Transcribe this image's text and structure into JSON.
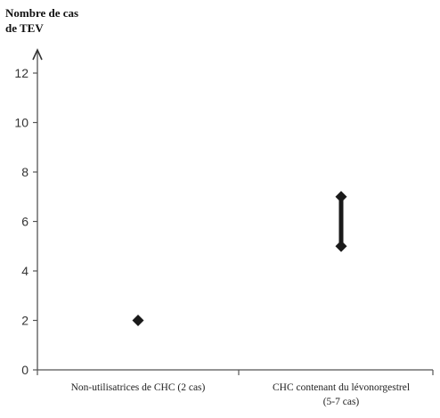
{
  "chart_data": {
    "type": "scatter",
    "ylabel_lines": [
      "Nombre de cas",
      "de TEV"
    ],
    "xlabel": "",
    "title": "",
    "ylim": [
      0,
      12
    ],
    "yticks": [
      0,
      2,
      4,
      6,
      8,
      10,
      12
    ],
    "grid": false,
    "legend": false,
    "categories": [
      {
        "label_lines": [
          "Non-utilisatrices de CHC (2 cas)"
        ]
      },
      {
        "label_lines": [
          "CHC contenant du lévonorgestrel",
          "(5-7 cas)"
        ]
      }
    ],
    "points": [
      {
        "category": 0,
        "y": 2
      },
      {
        "category": 1,
        "y": 5
      },
      {
        "category": 1,
        "y": 7
      }
    ],
    "ranges": [
      {
        "category": 1,
        "low": 5,
        "high": 7
      }
    ],
    "colors": {
      "marker": "#1a1a1a",
      "axis": "#555555"
    }
  }
}
